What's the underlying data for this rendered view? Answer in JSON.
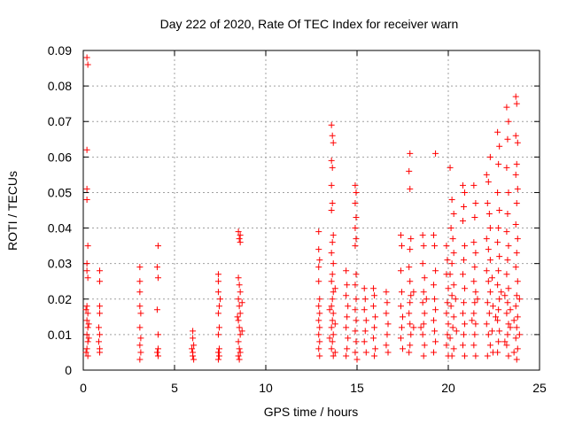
{
  "chart_data": {
    "type": "scatter",
    "title": "Day 222 of 2020, Rate Of TEC Index for receiver warn",
    "xlabel": "GPS time / hours",
    "ylabel": "ROTI / TECUs",
    "xlim": [
      0,
      25
    ],
    "ylim": [
      0,
      0.09
    ],
    "xticks": [
      0,
      5,
      10,
      15,
      20,
      25
    ],
    "yticks": [
      0,
      0.01,
      0.02,
      0.03,
      0.04,
      0.05,
      0.06,
      0.07,
      0.08,
      0.09
    ],
    "grid": true,
    "marker": "+",
    "colors": {
      "points": "#ff0000",
      "grid": "#a0a0a0",
      "axes": "#000000"
    },
    "points": [
      [
        0.2,
        0.088
      ],
      [
        0.25,
        0.086
      ],
      [
        0.2,
        0.062
      ],
      [
        0.2,
        0.051
      ],
      [
        0.2,
        0.048
      ],
      [
        0.25,
        0.035
      ],
      [
        0.2,
        0.03
      ],
      [
        0.25,
        0.026
      ],
      [
        0.2,
        0.028
      ],
      [
        0.2,
        0.018
      ],
      [
        0.25,
        0.016
      ],
      [
        0.2,
        0.014
      ],
      [
        0.25,
        0.012
      ],
      [
        0.2,
        0.01
      ],
      [
        0.25,
        0.008
      ],
      [
        0.2,
        0.006
      ],
      [
        0.25,
        0.004
      ],
      [
        0.15,
        0.017
      ],
      [
        0.3,
        0.013
      ],
      [
        0.3,
        0.009
      ],
      [
        0.15,
        0.005
      ],
      [
        0.9,
        0.028
      ],
      [
        0.9,
        0.025
      ],
      [
        0.9,
        0.018
      ],
      [
        0.9,
        0.016
      ],
      [
        0.85,
        0.012
      ],
      [
        0.9,
        0.01
      ],
      [
        0.85,
        0.008
      ],
      [
        0.9,
        0.006
      ],
      [
        0.9,
        0.005
      ],
      [
        3.1,
        0.029
      ],
      [
        3.1,
        0.025
      ],
      [
        3.1,
        0.022
      ],
      [
        3.1,
        0.018
      ],
      [
        3.15,
        0.016
      ],
      [
        3.1,
        0.012
      ],
      [
        3.15,
        0.009
      ],
      [
        3.1,
        0.007
      ],
      [
        3.15,
        0.005
      ],
      [
        3.1,
        0.003
      ],
      [
        4.1,
        0.035
      ],
      [
        4.05,
        0.029
      ],
      [
        4.1,
        0.026
      ],
      [
        4.05,
        0.017
      ],
      [
        4.1,
        0.01
      ],
      [
        4.1,
        0.006
      ],
      [
        4.05,
        0.005
      ],
      [
        4.1,
        0.004
      ],
      [
        6.0,
        0.011
      ],
      [
        6.0,
        0.009
      ],
      [
        6.05,
        0.007
      ],
      [
        5.95,
        0.006
      ],
      [
        6.0,
        0.005
      ],
      [
        6.0,
        0.004
      ],
      [
        6.05,
        0.003
      ],
      [
        7.4,
        0.027
      ],
      [
        7.4,
        0.025
      ],
      [
        7.4,
        0.022
      ],
      [
        7.45,
        0.018
      ],
      [
        7.4,
        0.016
      ],
      [
        7.45,
        0.012
      ],
      [
        7.4,
        0.01
      ],
      [
        7.45,
        0.006
      ],
      [
        7.4,
        0.005
      ],
      [
        7.45,
        0.004
      ],
      [
        7.4,
        0.003
      ],
      [
        7.5,
        0.02
      ],
      [
        8.5,
        0.039
      ],
      [
        8.6,
        0.038
      ],
      [
        8.55,
        0.037
      ],
      [
        8.6,
        0.036
      ],
      [
        8.5,
        0.026
      ],
      [
        8.55,
        0.024
      ],
      [
        8.6,
        0.022
      ],
      [
        8.5,
        0.02
      ],
      [
        8.55,
        0.018
      ],
      [
        8.6,
        0.016
      ],
      [
        8.5,
        0.014
      ],
      [
        8.55,
        0.012
      ],
      [
        8.6,
        0.01
      ],
      [
        8.5,
        0.008
      ],
      [
        8.55,
        0.006
      ],
      [
        8.6,
        0.005
      ],
      [
        8.5,
        0.004
      ],
      [
        8.55,
        0.003
      ],
      [
        8.7,
        0.019
      ],
      [
        8.45,
        0.015
      ],
      [
        8.7,
        0.011
      ],
      [
        12.9,
        0.039
      ],
      [
        12.9,
        0.034
      ],
      [
        12.95,
        0.031
      ],
      [
        12.9,
        0.029
      ],
      [
        12.9,
        0.025
      ],
      [
        12.95,
        0.02
      ],
      [
        12.9,
        0.018
      ],
      [
        12.95,
        0.016
      ],
      [
        12.9,
        0.014
      ],
      [
        12.95,
        0.012
      ],
      [
        12.9,
        0.01
      ],
      [
        12.95,
        0.008
      ],
      [
        12.9,
        0.006
      ],
      [
        12.95,
        0.004
      ],
      [
        13.6,
        0.069
      ],
      [
        13.65,
        0.066
      ],
      [
        13.7,
        0.064
      ],
      [
        13.6,
        0.059
      ],
      [
        13.65,
        0.057
      ],
      [
        13.6,
        0.052
      ],
      [
        13.65,
        0.047
      ],
      [
        13.6,
        0.045
      ],
      [
        13.7,
        0.038
      ],
      [
        13.65,
        0.036
      ],
      [
        13.6,
        0.033
      ],
      [
        13.7,
        0.03
      ],
      [
        13.65,
        0.027
      ],
      [
        13.6,
        0.025
      ],
      [
        13.7,
        0.022
      ],
      [
        13.65,
        0.02
      ],
      [
        13.6,
        0.018
      ],
      [
        13.7,
        0.016
      ],
      [
        13.65,
        0.014
      ],
      [
        13.6,
        0.012
      ],
      [
        13.7,
        0.01
      ],
      [
        13.65,
        0.008
      ],
      [
        13.6,
        0.006
      ],
      [
        13.7,
        0.004
      ],
      [
        13.8,
        0.023
      ],
      [
        13.5,
        0.017
      ],
      [
        13.8,
        0.013
      ],
      [
        13.5,
        0.009
      ],
      [
        13.8,
        0.005
      ],
      [
        14.4,
        0.028
      ],
      [
        14.45,
        0.024
      ],
      [
        14.4,
        0.021
      ],
      [
        14.5,
        0.018
      ],
      [
        14.45,
        0.015
      ],
      [
        14.4,
        0.012
      ],
      [
        14.5,
        0.009
      ],
      [
        14.45,
        0.006
      ],
      [
        14.4,
        0.004
      ],
      [
        14.9,
        0.052
      ],
      [
        14.95,
        0.05
      ],
      [
        14.9,
        0.047
      ],
      [
        14.95,
        0.043
      ],
      [
        14.9,
        0.04
      ],
      [
        14.95,
        0.037
      ],
      [
        14.9,
        0.035
      ],
      [
        14.95,
        0.027
      ],
      [
        14.9,
        0.024
      ],
      [
        14.95,
        0.02
      ],
      [
        14.9,
        0.017
      ],
      [
        14.95,
        0.014
      ],
      [
        14.9,
        0.011
      ],
      [
        14.95,
        0.008
      ],
      [
        14.9,
        0.005
      ],
      [
        15.0,
        0.003
      ],
      [
        15.4,
        0.023
      ],
      [
        15.45,
        0.02
      ],
      [
        15.4,
        0.017
      ],
      [
        15.5,
        0.014
      ],
      [
        15.45,
        0.011
      ],
      [
        15.4,
        0.008
      ],
      [
        15.5,
        0.005
      ],
      [
        15.9,
        0.023
      ],
      [
        15.95,
        0.021
      ],
      [
        15.9,
        0.018
      ],
      [
        16.0,
        0.015
      ],
      [
        15.95,
        0.012
      ],
      [
        15.9,
        0.009
      ],
      [
        16.0,
        0.006
      ],
      [
        15.95,
        0.004
      ],
      [
        16.6,
        0.022
      ],
      [
        16.65,
        0.019
      ],
      [
        16.6,
        0.016
      ],
      [
        16.7,
        0.013
      ],
      [
        16.65,
        0.01
      ],
      [
        16.6,
        0.007
      ],
      [
        16.7,
        0.005
      ],
      [
        17.4,
        0.038
      ],
      [
        17.45,
        0.035
      ],
      [
        17.4,
        0.028
      ],
      [
        17.45,
        0.022
      ],
      [
        17.4,
        0.018
      ],
      [
        17.5,
        0.015
      ],
      [
        17.45,
        0.012
      ],
      [
        17.4,
        0.009
      ],
      [
        17.5,
        0.006
      ],
      [
        17.9,
        0.061
      ],
      [
        17.85,
        0.056
      ],
      [
        17.9,
        0.051
      ],
      [
        17.95,
        0.037
      ],
      [
        17.9,
        0.034
      ],
      [
        17.85,
        0.029
      ],
      [
        17.9,
        0.025
      ],
      [
        17.95,
        0.021
      ],
      [
        17.9,
        0.019
      ],
      [
        17.85,
        0.016
      ],
      [
        17.9,
        0.013
      ],
      [
        17.95,
        0.01
      ],
      [
        17.9,
        0.007
      ],
      [
        17.85,
        0.005
      ],
      [
        18.1,
        0.022
      ],
      [
        18.1,
        0.012
      ],
      [
        18.6,
        0.038
      ],
      [
        18.65,
        0.035
      ],
      [
        18.6,
        0.03
      ],
      [
        18.7,
        0.026
      ],
      [
        18.65,
        0.022
      ],
      [
        18.6,
        0.019
      ],
      [
        18.7,
        0.016
      ],
      [
        18.65,
        0.013
      ],
      [
        18.6,
        0.01
      ],
      [
        18.7,
        0.007
      ],
      [
        18.65,
        0.004
      ],
      [
        18.8,
        0.02
      ],
      [
        18.5,
        0.012
      ],
      [
        19.3,
        0.061
      ],
      [
        19.2,
        0.038
      ],
      [
        19.25,
        0.035
      ],
      [
        19.3,
        0.028
      ],
      [
        19.2,
        0.024
      ],
      [
        19.25,
        0.02
      ],
      [
        19.3,
        0.017
      ],
      [
        19.2,
        0.014
      ],
      [
        19.25,
        0.011
      ],
      [
        19.3,
        0.008
      ],
      [
        19.2,
        0.005
      ],
      [
        19.9,
        0.035
      ],
      [
        19.95,
        0.031
      ],
      [
        19.9,
        0.027
      ],
      [
        20.0,
        0.023
      ],
      [
        19.95,
        0.019
      ],
      [
        19.9,
        0.016
      ],
      [
        20.0,
        0.013
      ],
      [
        19.95,
        0.01
      ],
      [
        19.9,
        0.007
      ],
      [
        20.0,
        0.004
      ],
      [
        20.1,
        0.057
      ],
      [
        20.2,
        0.048
      ],
      [
        20.3,
        0.044
      ],
      [
        20.15,
        0.04
      ],
      [
        20.25,
        0.037
      ],
      [
        20.3,
        0.033
      ],
      [
        20.2,
        0.03
      ],
      [
        20.1,
        0.027
      ],
      [
        20.3,
        0.024
      ],
      [
        20.2,
        0.021
      ],
      [
        20.15,
        0.018
      ],
      [
        20.3,
        0.015
      ],
      [
        20.25,
        0.012
      ],
      [
        20.1,
        0.009
      ],
      [
        20.3,
        0.006
      ],
      [
        20.2,
        0.004
      ],
      [
        20.4,
        0.02
      ],
      [
        20.45,
        0.011
      ],
      [
        20.8,
        0.052
      ],
      [
        20.9,
        0.05
      ],
      [
        20.85,
        0.046
      ],
      [
        20.8,
        0.042
      ],
      [
        20.9,
        0.035
      ],
      [
        20.85,
        0.031
      ],
      [
        20.8,
        0.027
      ],
      [
        20.9,
        0.023
      ],
      [
        20.85,
        0.019
      ],
      [
        20.8,
        0.016
      ],
      [
        20.9,
        0.013
      ],
      [
        20.85,
        0.01
      ],
      [
        20.8,
        0.007
      ],
      [
        20.9,
        0.004
      ],
      [
        21.4,
        0.052
      ],
      [
        21.5,
        0.047
      ],
      [
        21.45,
        0.043
      ],
      [
        21.4,
        0.036
      ],
      [
        21.5,
        0.033
      ],
      [
        21.45,
        0.029
      ],
      [
        21.4,
        0.025
      ],
      [
        21.5,
        0.022
      ],
      [
        21.45,
        0.019
      ],
      [
        21.4,
        0.016
      ],
      [
        21.5,
        0.013
      ],
      [
        21.45,
        0.01
      ],
      [
        21.4,
        0.007
      ],
      [
        21.5,
        0.004
      ],
      [
        21.6,
        0.02
      ],
      [
        21.3,
        0.014
      ],
      [
        22.1,
        0.055
      ],
      [
        22.2,
        0.053
      ],
      [
        22.3,
        0.06
      ],
      [
        22.15,
        0.047
      ],
      [
        22.25,
        0.044
      ],
      [
        22.3,
        0.04
      ],
      [
        22.1,
        0.037
      ],
      [
        22.2,
        0.034
      ],
      [
        22.3,
        0.031
      ],
      [
        22.1,
        0.028
      ],
      [
        22.2,
        0.025
      ],
      [
        22.3,
        0.022
      ],
      [
        22.15,
        0.019
      ],
      [
        22.25,
        0.016
      ],
      [
        22.1,
        0.013
      ],
      [
        22.2,
        0.01
      ],
      [
        22.3,
        0.007
      ],
      [
        22.15,
        0.004
      ],
      [
        22.4,
        0.026
      ],
      [
        22.45,
        0.018
      ],
      [
        22.4,
        0.011
      ],
      [
        22.45,
        0.005
      ],
      [
        22.7,
        0.067
      ],
      [
        22.8,
        0.063
      ],
      [
        22.75,
        0.058
      ],
      [
        22.7,
        0.05
      ],
      [
        22.8,
        0.045
      ],
      [
        22.75,
        0.04
      ],
      [
        22.7,
        0.036
      ],
      [
        22.8,
        0.032
      ],
      [
        22.75,
        0.028
      ],
      [
        22.7,
        0.024
      ],
      [
        22.8,
        0.02
      ],
      [
        22.75,
        0.017
      ],
      [
        22.7,
        0.014
      ],
      [
        22.8,
        0.011
      ],
      [
        22.75,
        0.008
      ],
      [
        22.7,
        0.005
      ],
      [
        22.9,
        0.022
      ],
      [
        22.6,
        0.015
      ],
      [
        23.2,
        0.074
      ],
      [
        23.3,
        0.07
      ],
      [
        23.25,
        0.065
      ],
      [
        23.2,
        0.057
      ],
      [
        23.3,
        0.05
      ],
      [
        23.25,
        0.044
      ],
      [
        23.2,
        0.039
      ],
      [
        23.3,
        0.035
      ],
      [
        23.25,
        0.031
      ],
      [
        23.2,
        0.027
      ],
      [
        23.3,
        0.023
      ],
      [
        23.25,
        0.019
      ],
      [
        23.2,
        0.016
      ],
      [
        23.3,
        0.013
      ],
      [
        23.25,
        0.01
      ],
      [
        23.2,
        0.007
      ],
      [
        23.3,
        0.004
      ],
      [
        23.1,
        0.021
      ],
      [
        23.4,
        0.017
      ],
      [
        23.4,
        0.012
      ],
      [
        23.1,
        0.008
      ],
      [
        23.7,
        0.077
      ],
      [
        23.75,
        0.075
      ],
      [
        23.7,
        0.066
      ],
      [
        23.8,
        0.064
      ],
      [
        23.75,
        0.058
      ],
      [
        23.7,
        0.055
      ],
      [
        23.8,
        0.051
      ],
      [
        23.75,
        0.047
      ],
      [
        23.7,
        0.041
      ],
      [
        23.8,
        0.037
      ],
      [
        23.75,
        0.033
      ],
      [
        23.7,
        0.029
      ],
      [
        23.8,
        0.025
      ],
      [
        23.75,
        0.021
      ],
      [
        23.7,
        0.018
      ],
      [
        23.8,
        0.015
      ],
      [
        23.75,
        0.012
      ],
      [
        23.7,
        0.009
      ],
      [
        23.8,
        0.006
      ],
      [
        23.75,
        0.003
      ],
      [
        23.9,
        0.02
      ],
      [
        23.6,
        0.014
      ],
      [
        23.9,
        0.01
      ],
      [
        23.6,
        0.005
      ]
    ]
  }
}
